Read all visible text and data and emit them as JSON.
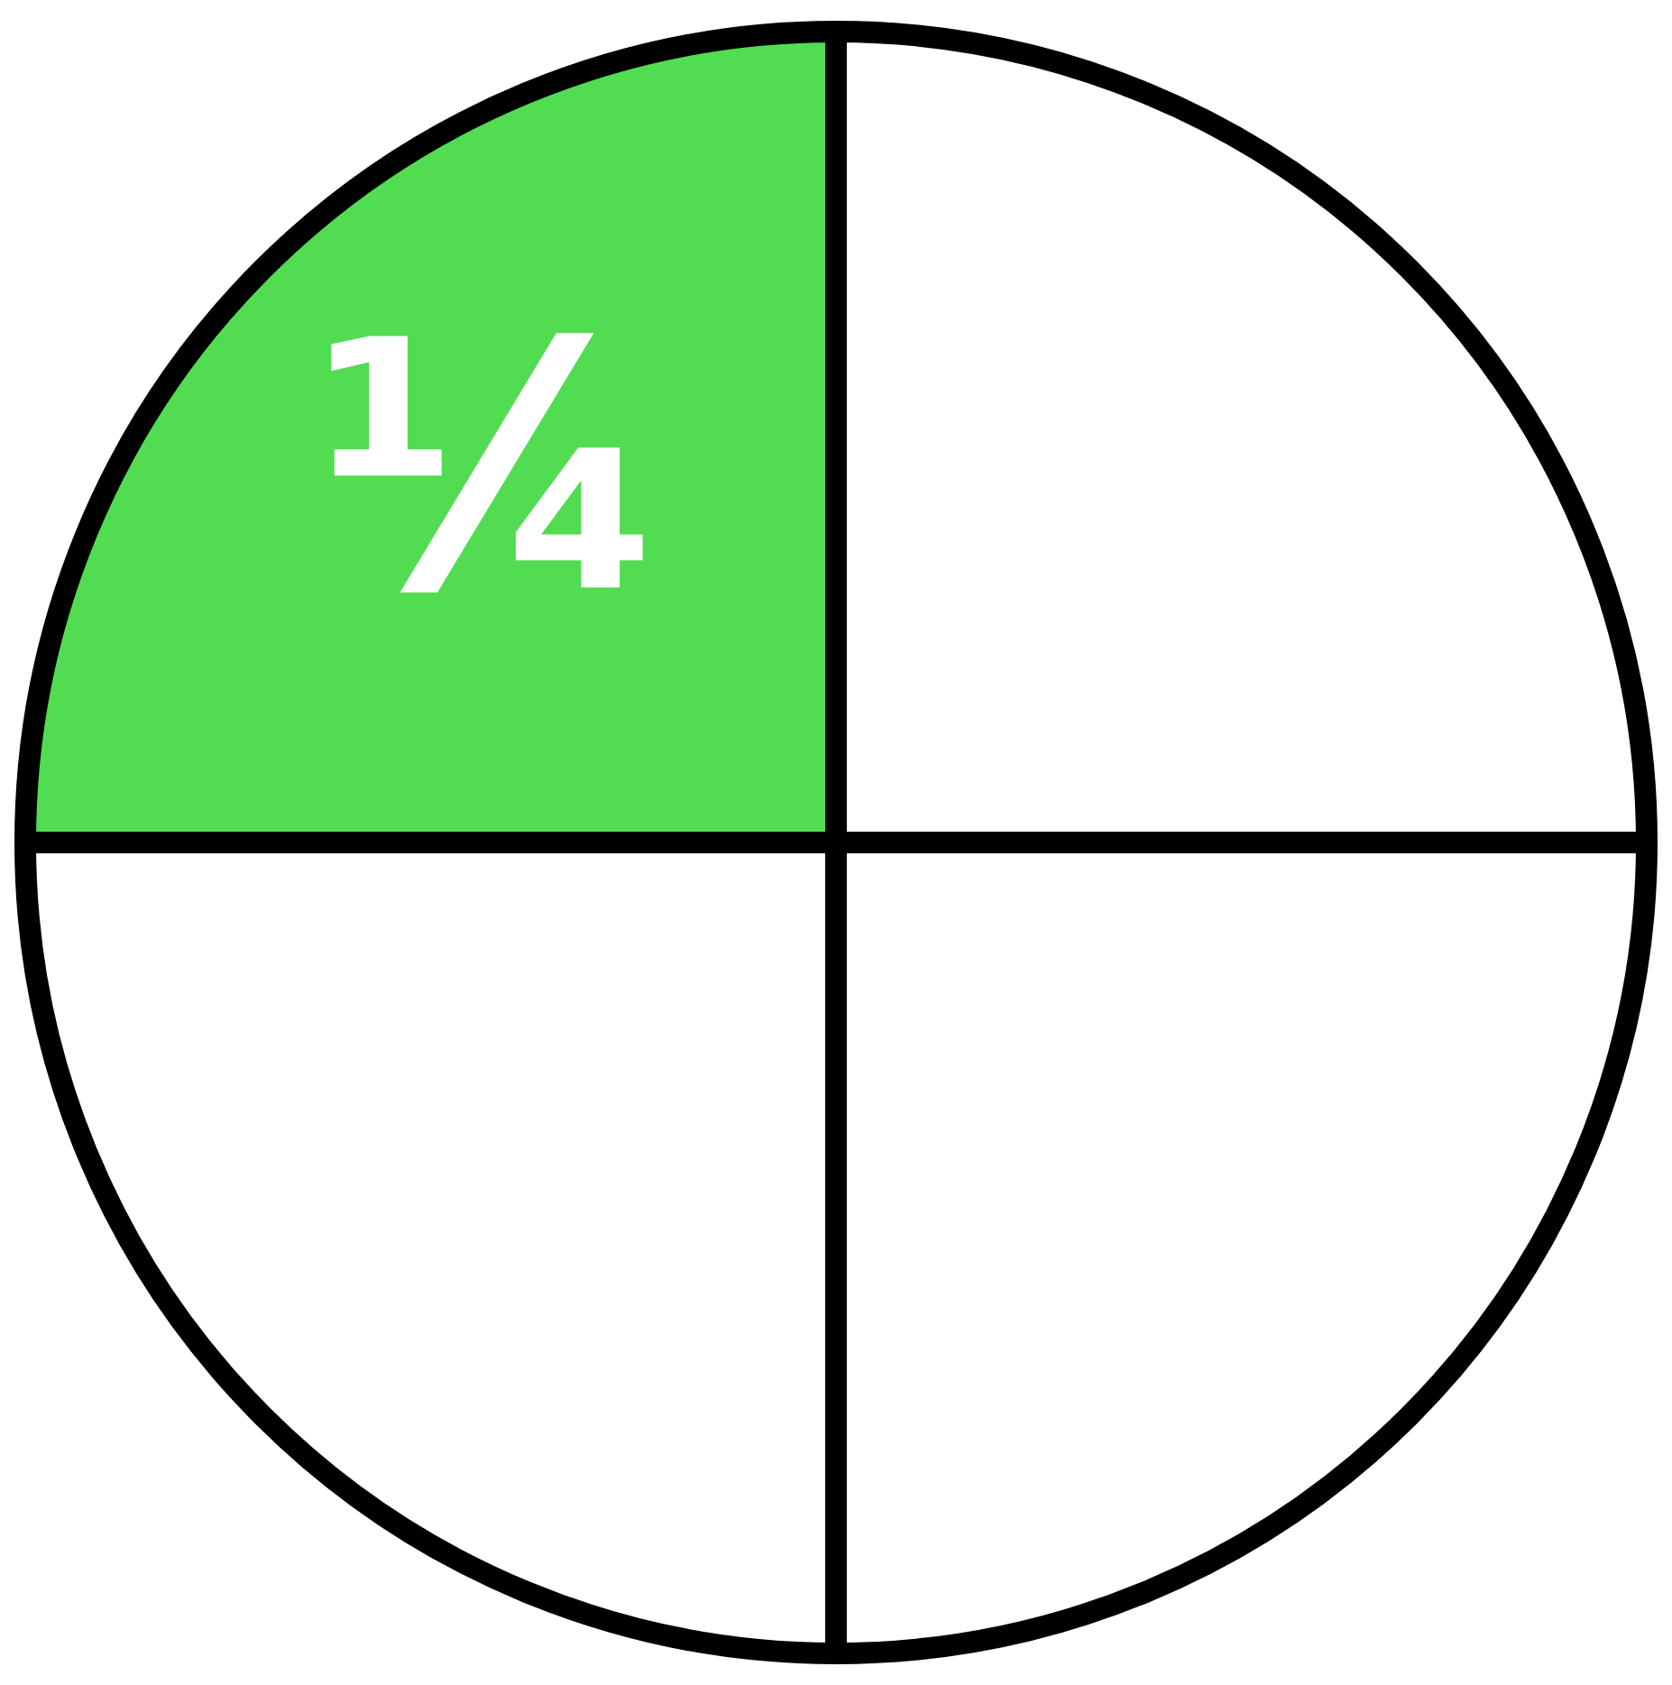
{
  "chart_data": {
    "type": "pie",
    "categories": [
      null,
      null,
      null,
      null
    ],
    "values": [
      25,
      25,
      25,
      25
    ],
    "colors": [
      "#ffffff",
      "#ffffff",
      "#ffffff",
      "#52dc52"
    ],
    "value_labels": [
      null,
      null,
      null,
      "¼"
    ]
  }
}
